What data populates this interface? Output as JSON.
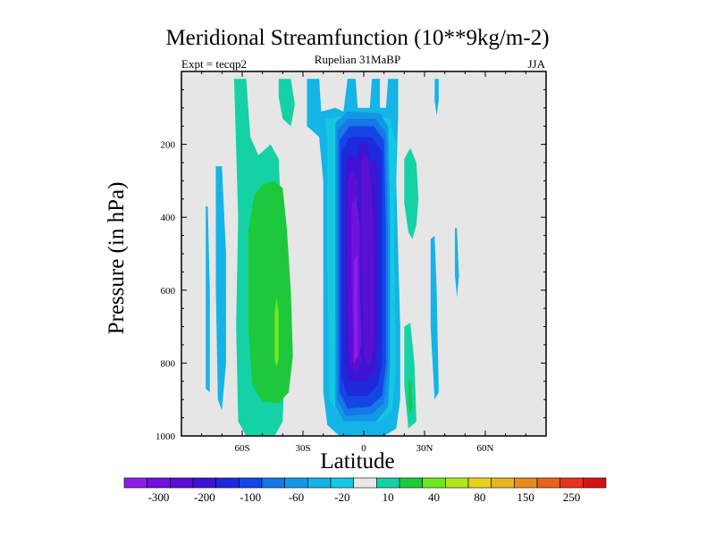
{
  "chart_data": {
    "type": "contour",
    "title": "Meridional Streamfunction (10**9kg/m-2)",
    "subtitle_left": "Expt = tecqp2",
    "subtitle_center": "Rupelian  31MaBP",
    "subtitle_right": "JJA",
    "xlabel": "Latitude",
    "ylabel": "Pressure (in hPa)",
    "xlim": [
      -90,
      90
    ],
    "ylim": [
      1000,
      0
    ],
    "xticks": [
      {
        "value": -60,
        "label": "60S"
      },
      {
        "value": -30,
        "label": "30S"
      },
      {
        "value": 0,
        "label": "0"
      },
      {
        "value": 30,
        "label": "30N"
      },
      {
        "value": 60,
        "label": "60N"
      }
    ],
    "yticks": [
      {
        "value": 200,
        "label": "200"
      },
      {
        "value": 400,
        "label": "400"
      },
      {
        "value": 600,
        "label": "600"
      },
      {
        "value": 800,
        "label": "800"
      },
      {
        "value": 1000,
        "label": "1000"
      }
    ],
    "background_color": "#e6e6e6",
    "colorbar": {
      "colors": [
        "#8c1ee6",
        "#6e14dc",
        "#5a0fd2",
        "#3c14d2",
        "#1e28dc",
        "#1446e6",
        "#1478e6",
        "#1496e6",
        "#14b4e6",
        "#14c8e1",
        "#e8e8e8",
        "#14d2a5",
        "#1ec83c",
        "#6ee61e",
        "#b4e61e",
        "#e6d21e",
        "#e6b41e",
        "#e68c1e",
        "#e6641e",
        "#e6321e",
        "#d21414"
      ],
      "tick_labels": [
        "-300",
        "-200",
        "-100",
        "-60",
        "-20",
        "10",
        "40",
        "80",
        "150",
        "250"
      ]
    },
    "contours": [
      {
        "level": "10",
        "color": "#14d2a5",
        "region": "southern hemisphere, ~63S–42S, 20–1000 hPa"
      },
      {
        "level": "40",
        "color": "#1ec83c",
        "region": "~57S–35S, 310–900 hPa"
      },
      {
        "level": "80",
        "color": "#6ee61e",
        "region": "~44S–42S, 620–820 hPa"
      },
      {
        "level": "10",
        "color": "#14d2a5",
        "region": "~20N–27N, 240–960 hPa"
      },
      {
        "level": "-20",
        "color": "#14b4e6",
        "region": "~20S–25N, 20–1000 hPa"
      },
      {
        "level": "-100",
        "color": "#1e28dc",
        "region": "~13S–10N, 140–960 hPa"
      },
      {
        "level": "-300",
        "color": "#8c1ee6",
        "region": "~7S–6N, 330–850 hPa"
      }
    ]
  }
}
